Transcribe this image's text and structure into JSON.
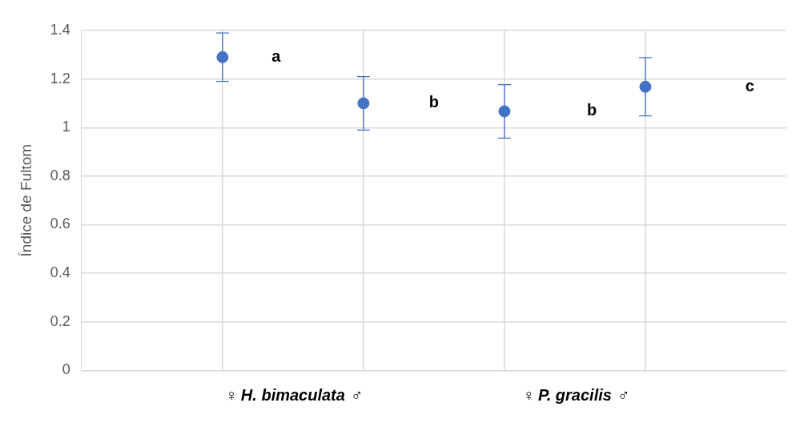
{
  "chart_data": {
    "type": "scatter",
    "ylabel": "Índice de Fultom",
    "categories": [
      null,
      null,
      null,
      null
    ],
    "series": [
      {
        "color": "#4472c4",
        "values": [
          1.29,
          1.1,
          1.067,
          1.168
        ],
        "errors": [
          0.1,
          0.11,
          0.11,
          0.12
        ]
      }
    ],
    "ylim": [
      0,
      1.4
    ],
    "yticks": [
      0,
      0.2,
      0.4,
      0.6,
      0.8,
      1,
      1.2,
      1.4
    ],
    "grid": true,
    "marker": "circle",
    "annotations": [
      "a",
      "b",
      "b",
      "c",
      "♀ H. bimaculata ♂",
      "♀ P. gracilis ♂"
    ]
  }
}
